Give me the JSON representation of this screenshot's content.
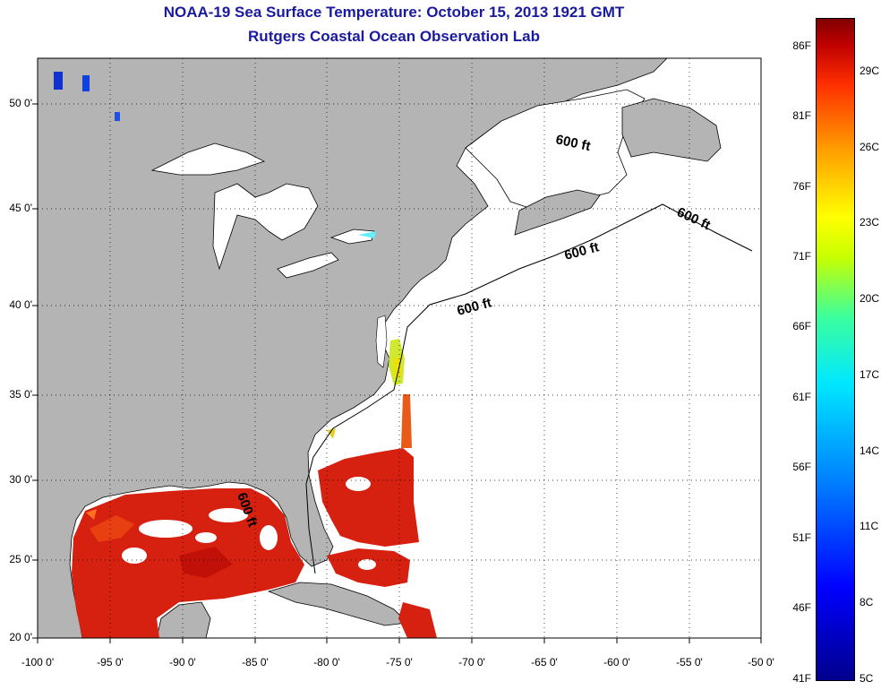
{
  "title": "NOAA-19 Sea Surface Temperature:  October 15, 2013 1921 GMT",
  "subtitle": "Rutgers Coastal Ocean Observation Lab",
  "lat_labels": [
    "50 0'",
    "45 0'",
    "40 0'",
    "35 0'",
    "30 0'",
    "25 0'",
    "20 0'"
  ],
  "lon_labels": [
    "-100 0'",
    "-95 0'",
    "-90 0'",
    "-85 0'",
    "-80 0'",
    "-75 0'",
    "-70 0'",
    "-65 0'",
    "-60 0'",
    "-55 0'",
    "-50 0'"
  ],
  "colorbar": {
    "f_labels": [
      "86F",
      "81F",
      "76F",
      "71F",
      "66F",
      "61F",
      "56F",
      "51F",
      "46F",
      "41F"
    ],
    "c_labels": [
      "29C",
      "26C",
      "23C",
      "20C",
      "17C",
      "14C",
      "11C",
      "8C",
      "5C"
    ]
  },
  "isobath_label": "600 ft",
  "colors": {
    "land": "#b4b4b4",
    "ocean": "#ffffff",
    "title": "#1a1aa0",
    "warm_sst": "#d62010"
  }
}
